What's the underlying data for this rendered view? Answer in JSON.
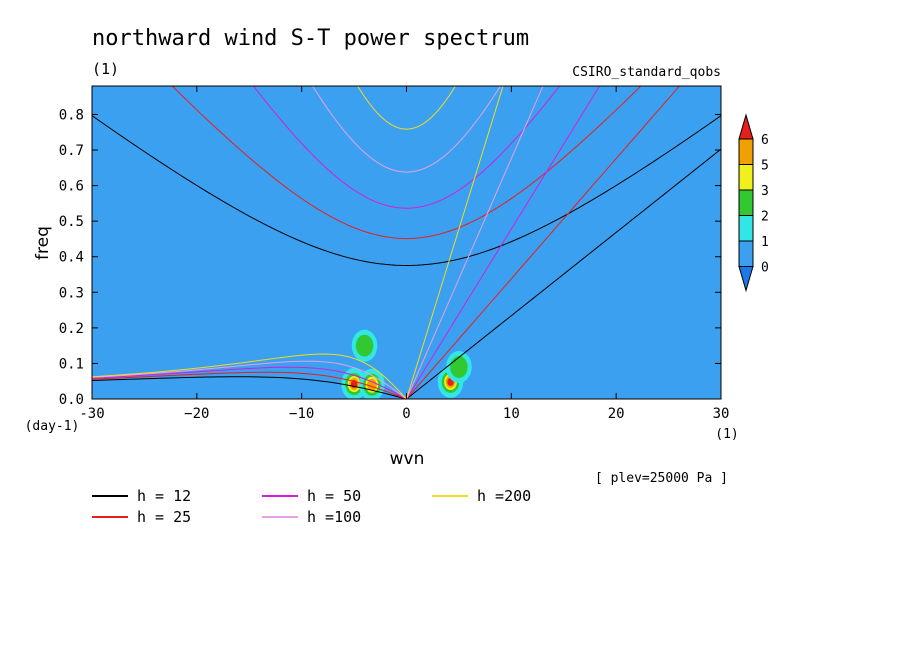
{
  "chart_data": {
    "type": "heatmap",
    "title": "northward wind S-T power spectrum",
    "subtitle_left": "(1)",
    "subtitle_right": "CSIRO_standard_qobs",
    "xlabel": "wvn",
    "ylabel": "freq",
    "x_unit": "(1)",
    "y_unit": "(day-1)",
    "annotation": "[ plev=25000 Pa ]",
    "xlim": [
      -30,
      30
    ],
    "ylim": [
      0.0,
      0.88
    ],
    "x_ticks": [
      -30,
      -20,
      -10,
      0,
      10,
      20,
      30
    ],
    "x_tick_labels": [
      "-30",
      "−20",
      "−10",
      "0",
      "10",
      "20",
      "30"
    ],
    "y_ticks": [
      0.0,
      0.1,
      0.2,
      0.3,
      0.4,
      0.5,
      0.6,
      0.7,
      0.8
    ],
    "y_tick_labels": [
      "0.0",
      "0.1",
      "0.2",
      "0.3",
      "0.4",
      "0.5",
      "0.6",
      "0.7",
      "0.8"
    ],
    "colorbar": {
      "levels": [
        "0",
        "1",
        "2",
        "3",
        "5",
        "6"
      ],
      "colors": [
        "#1e78e6",
        "#3ca0f0",
        "#32e6e6",
        "#32c832",
        "#f0f01e",
        "#f0a000",
        "#e61e1e"
      ]
    },
    "background_color": "#3ca0f0",
    "blobs": [
      {
        "x": 4.2,
        "y": 0.048,
        "level": 6
      },
      {
        "x": -5.0,
        "y": 0.042,
        "level": 6
      },
      {
        "x": -3.3,
        "y": 0.04,
        "level": 5
      },
      {
        "x": 5.0,
        "y": 0.09,
        "level": 3
      },
      {
        "x": -4.0,
        "y": 0.15,
        "level": 3
      }
    ],
    "dispersion_curves": [
      {
        "name": "h = 12",
        "h": 12,
        "color": "#000000"
      },
      {
        "name": "h = 25",
        "h": 25,
        "color": "#e61e1e"
      },
      {
        "name": "h = 50",
        "h": 50,
        "color": "#d21edc"
      },
      {
        "name": "h =100",
        "h": 100,
        "color": "#e6a0e6"
      },
      {
        "name": "h =200",
        "h": 200,
        "color": "#f0dc1e"
      }
    ]
  }
}
